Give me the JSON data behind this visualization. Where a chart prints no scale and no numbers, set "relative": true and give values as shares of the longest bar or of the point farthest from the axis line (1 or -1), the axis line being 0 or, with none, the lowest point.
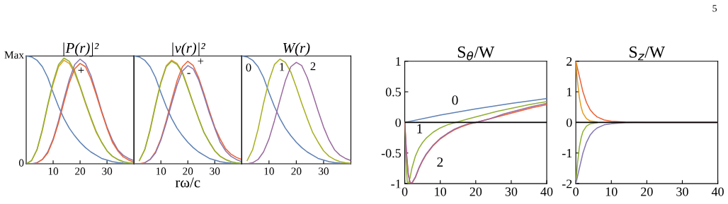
{
  "chart_data": [
    {
      "type": "line",
      "title": "|P(r)|²",
      "relative": true,
      "xlim": [
        0,
        40
      ],
      "xticks": [
        10,
        20,
        30
      ],
      "x": [
        0,
        2,
        4,
        6,
        8,
        10,
        12,
        14,
        16,
        18,
        20,
        22,
        24,
        26,
        28,
        30,
        32,
        34,
        36,
        38,
        40
      ],
      "annotations": [
        {
          "text": "-",
          "x": 20,
          "y": 0.97
        },
        {
          "text": "+",
          "x": 20,
          "y": 0.93
        },
        "Max",
        "0"
      ],
      "series": [
        {
          "color": "#5e81b5",
          "values": [
            1,
            0.99,
            0.96,
            0.9,
            0.8,
            0.66,
            0.53,
            0.42,
            0.33,
            0.26,
            0.2,
            0.15,
            0.11,
            0.08,
            0.05,
            0.035,
            0.02,
            0.012,
            0.007,
            0.004,
            null
          ]
        },
        {
          "color": "#e19c24",
          "values": [
            0,
            0.03,
            0.13,
            0.31,
            0.54,
            0.74,
            0.9,
            0.96,
            0.93,
            0.84,
            0.71,
            0.56,
            0.42,
            0.29,
            0.2,
            0.12,
            0.07,
            0.04,
            0.02,
            null,
            null
          ]
        },
        {
          "color": "#8fb032",
          "values": [
            0,
            0.03,
            0.13,
            0.32,
            0.55,
            0.76,
            0.92,
            0.98,
            0.95,
            0.86,
            0.72,
            0.57,
            0.43,
            0.3,
            0.2,
            0.12,
            0.07,
            0.04,
            0.02,
            0.01,
            0.005
          ]
        },
        {
          "color": "#8778b3",
          "values": [
            0,
            0,
            0.01,
            0.04,
            0.11,
            0.23,
            0.4,
            0.6,
            0.78,
            0.92,
            0.97,
            0.93,
            0.82,
            0.66,
            0.49,
            0.34,
            0.22,
            0.13,
            0.08,
            0.05,
            0.03
          ]
        },
        {
          "color": "#eb6235",
          "values": [
            null,
            null,
            0.01,
            0.04,
            0.1,
            0.22,
            0.38,
            0.57,
            0.75,
            0.88,
            0.93,
            0.9,
            0.79,
            0.64,
            0.48,
            0.33,
            0.2,
            0.12,
            0.065,
            0.035,
            0.015
          ]
        }
      ]
    },
    {
      "type": "line",
      "title": "|v(r)|²",
      "xlabel": "rω/c",
      "relative": true,
      "xlim": [
        0,
        40
      ],
      "xticks": [
        10,
        20,
        30
      ],
      "x": [
        0,
        2,
        4,
        6,
        8,
        10,
        12,
        14,
        16,
        18,
        20,
        22,
        24,
        26,
        28,
        30,
        32,
        34,
        36,
        38,
        40
      ],
      "annotations": [
        {
          "text": "+",
          "x": 20,
          "y": 0.95
        },
        {
          "text": "-",
          "x": 20,
          "y": 0.91
        }
      ],
      "series": [
        {
          "color": "#5e81b5",
          "values": [
            1,
            0.99,
            0.96,
            0.9,
            0.8,
            0.66,
            0.53,
            0.42,
            0.33,
            0.26,
            0.2,
            0.15,
            0.11,
            0.08,
            0.05,
            0.035,
            0.02,
            0.012,
            0.007,
            0.004,
            null
          ]
        },
        {
          "color": "#e19c24",
          "values": [
            null,
            0.03,
            0.13,
            0.32,
            0.55,
            0.76,
            0.91,
            0.96,
            0.93,
            0.85,
            0.71,
            0.56,
            0.42,
            0.29,
            0.2,
            0.12,
            0.07,
            0.04,
            0.02,
            null,
            null
          ]
        },
        {
          "color": "#8fb032",
          "values": [
            null,
            0.03,
            0.13,
            0.31,
            0.54,
            0.75,
            0.9,
            0.95,
            0.92,
            0.84,
            0.7,
            0.56,
            0.42,
            0.29,
            0.2,
            0.12,
            0.07,
            0.04,
            0.02,
            0.01,
            0.005
          ]
        },
        {
          "color": "#eb6235",
          "values": [
            0,
            0,
            0.01,
            0.04,
            0.11,
            0.23,
            0.4,
            0.59,
            0.77,
            0.9,
            0.95,
            0.91,
            0.8,
            0.65,
            0.49,
            0.34,
            0.23,
            0.14,
            0.09,
            0.06,
            0.04
          ]
        },
        {
          "color": "#8778b3",
          "values": [
            null,
            null,
            0.01,
            0.04,
            0.1,
            0.22,
            0.38,
            0.56,
            0.73,
            0.86,
            0.91,
            0.88,
            0.78,
            0.63,
            0.47,
            0.33,
            0.2,
            0.12,
            0.07,
            0.04,
            0.02
          ]
        }
      ]
    },
    {
      "type": "line",
      "title": "W(r)",
      "relative": true,
      "xlim": [
        0,
        40
      ],
      "xticks": [
        10,
        20,
        30
      ],
      "x": [
        0,
        2,
        4,
        6,
        8,
        10,
        12,
        14,
        16,
        18,
        20,
        22,
        24,
        26,
        28,
        30,
        32,
        34,
        36,
        38,
        40
      ],
      "annotations": [
        {
          "text": "0",
          "x": 0,
          "y": 1
        },
        {
          "text": "1",
          "x": 14,
          "y": 0.97
        },
        {
          "text": "2",
          "x": 20,
          "y": 0.94
        }
      ],
      "series": [
        {
          "color": "#5e81b5",
          "values": [
            1,
            0.99,
            0.96,
            0.9,
            0.8,
            0.66,
            0.53,
            0.42,
            0.33,
            0.26,
            0.2,
            0.15,
            0.11,
            0.08,
            0.05,
            0.035,
            0.02,
            0.012,
            0.007,
            0.004,
            null
          ]
        },
        {
          "color": "#a8b020",
          "values": [
            null,
            0.03,
            0.13,
            0.32,
            0.56,
            0.77,
            0.92,
            0.97,
            0.94,
            0.85,
            0.71,
            0.56,
            0.42,
            0.29,
            0.2,
            0.12,
            0.07,
            0.04,
            0.02,
            0.01,
            0.005
          ]
        },
        {
          "color": "#9b6aa0",
          "values": [
            null,
            0,
            0.01,
            0.04,
            0.11,
            0.23,
            0.4,
            0.59,
            0.77,
            0.9,
            0.94,
            0.91,
            0.8,
            0.65,
            0.49,
            0.34,
            0.22,
            0.13,
            0.08,
            0.05,
            0.03
          ]
        }
      ]
    },
    {
      "type": "line",
      "title": "S$_{θ}$/W",
      "xlim": [
        0,
        40
      ],
      "xticks": [
        0,
        10,
        20,
        30,
        40
      ],
      "ylim": [
        -1,
        1
      ],
      "yticks": [
        -1,
        -0.5,
        0,
        0.5,
        1
      ],
      "ref_lines": [
        {
          "axis": "y",
          "value": 0,
          "color": "#000000"
        }
      ],
      "annotations": [
        {
          "text": "0",
          "x": 10,
          "y": 0.12
        },
        {
          "text": "1",
          "x": 5,
          "y": -0.33
        },
        {
          "text": "2",
          "x": 8,
          "y": -0.38
        }
      ],
      "series": [
        {
          "color": "#5e81b5",
          "x": [
            0,
            10,
            20,
            30,
            40
          ],
          "values": [
            0,
            0.12,
            0.22,
            0.31,
            0.39
          ]
        },
        {
          "color": "#8fb032",
          "x": [
            0,
            0.3,
            0.7,
            1,
            1.5,
            2,
            3,
            4,
            5,
            6,
            8,
            10,
            12,
            14.3,
            18,
            22,
            26,
            30,
            35,
            40
          ],
          "values": [
            0,
            -0.6,
            -0.97,
            -1,
            -0.9,
            -0.75,
            -0.55,
            -0.42,
            -0.33,
            -0.26,
            -0.16,
            -0.09,
            -0.04,
            0,
            0.06,
            0.12,
            0.18,
            0.23,
            0.29,
            0.34
          ]
        },
        {
          "color": "#eb6235",
          "x": [
            0,
            0.5,
            1,
            1.5,
            2,
            3,
            4,
            5,
            6,
            8,
            10,
            12,
            14,
            16,
            18,
            20,
            24,
            28,
            32,
            36,
            40
          ],
          "values": [
            0,
            -0.5,
            -0.85,
            -0.98,
            -1,
            -0.9,
            -0.75,
            -0.63,
            -0.53,
            -0.38,
            -0.27,
            -0.19,
            -0.12,
            -0.07,
            -0.03,
            0,
            0.06,
            0.12,
            0.18,
            0.24,
            0.29
          ]
        },
        {
          "color": "#9b6aa0",
          "x": [
            0,
            0.5,
            1,
            1.5,
            2,
            3,
            4,
            5,
            6,
            8,
            10,
            12,
            14,
            16,
            18,
            20,
            24,
            28,
            32,
            36,
            40
          ],
          "values": [
            0,
            -0.52,
            -0.86,
            -0.98,
            -0.99,
            -0.89,
            -0.74,
            -0.62,
            -0.52,
            -0.37,
            -0.26,
            -0.18,
            -0.11,
            -0.06,
            -0.02,
            0,
            0.06,
            0.14,
            0.2,
            0.26,
            0.31
          ]
        }
      ]
    },
    {
      "type": "line",
      "title": "S$_{z}$/W",
      "xlim": [
        0,
        40
      ],
      "xticks": [
        0,
        10,
        20,
        30,
        40
      ],
      "ylim": [
        -2,
        2
      ],
      "yticks": [
        -2,
        -1,
        0,
        1,
        2
      ],
      "ref_lines": [
        {
          "axis": "y",
          "value": 0,
          "color": "#000000"
        }
      ],
      "annotations": [
        "5"
      ],
      "series": [
        {
          "color": "#eb6235",
          "x": [
            0,
            1,
            2,
            3,
            4,
            5,
            6,
            8,
            10,
            14,
            20,
            40
          ],
          "values": [
            2,
            1.5,
            1,
            0.65,
            0.42,
            0.28,
            0.18,
            0.08,
            0.04,
            0.01,
            0,
            0
          ]
        },
        {
          "color": "#e19c24",
          "x": [
            0,
            0.5,
            1,
            1.5,
            2,
            3,
            4,
            6
          ],
          "values": [
            2,
            1.3,
            0.8,
            0.5,
            0.3,
            0.12,
            0.05,
            0.01
          ]
        },
        {
          "color": "#8fb032",
          "x": [
            0,
            0.5,
            1,
            1.5,
            2,
            3,
            4,
            6
          ],
          "values": [
            -2,
            -1.3,
            -0.8,
            -0.5,
            -0.3,
            -0.12,
            -0.05,
            -0.01
          ]
        },
        {
          "color": "#8778b3",
          "x": [
            0,
            1,
            2,
            3,
            4,
            5,
            6,
            8,
            10,
            14,
            20,
            40
          ],
          "values": [
            -2,
            -1.5,
            -1,
            -0.65,
            -0.42,
            -0.28,
            -0.18,
            -0.08,
            -0.04,
            -0.01,
            0,
            0
          ]
        }
      ]
    }
  ]
}
